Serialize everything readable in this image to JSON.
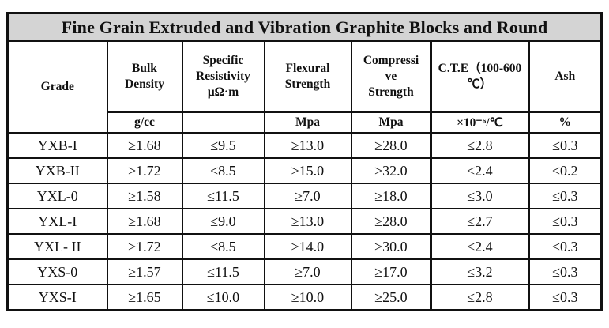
{
  "title": "Fine Grain Extruded and Vibration Graphite Blocks and Round",
  "headers": [
    "Grade",
    "Bulk Density",
    "Specific Resistivity μΩ·m",
    "Flexural Strength",
    "Compressive Strength",
    "C.T.E（100-600 ℃）",
    "Ash"
  ],
  "header_lines": [
    [
      "Grade"
    ],
    [
      "Bulk",
      "Density"
    ],
    [
      "Specific",
      "Resistivity",
      "μΩ·m"
    ],
    [
      "Flexural",
      "Strength"
    ],
    [
      "Compressi",
      "ve",
      "Strength"
    ],
    [
      "C.T.E（100-",
      "600 ℃）"
    ],
    [
      "Ash"
    ]
  ],
  "units": [
    "g/cc",
    "",
    "Mpa",
    "Mpa",
    "×10⁻⁶/℃",
    "%"
  ],
  "rows": [
    [
      "YXB-I",
      "≥1.68",
      "≤9.5",
      "≥13.0",
      "≥28.0",
      "≤2.8",
      "≤0.3"
    ],
    [
      "YXB-II",
      "≥1.72",
      "≤8.5",
      "≥15.0",
      "≥32.0",
      "≤2.4",
      "≤0.2"
    ],
    [
      "YXL-0",
      "≥1.58",
      "≤11.5",
      "≥7.0",
      "≥18.0",
      "≤3.0",
      "≤0.3"
    ],
    [
      "YXL-I",
      "≥1.68",
      "≤9.0",
      "≥13.0",
      "≥28.0",
      "≤2.7",
      "≤0.3"
    ],
    [
      "YXL- II",
      "≥1.72",
      "≤8.5",
      "≥14.0",
      "≥30.0",
      "≤2.4",
      "≤0.3"
    ],
    [
      "YXS-0",
      "≥1.57",
      "≤11.5",
      "≥7.0",
      "≥17.0",
      "≤3.2",
      "≤0.3"
    ],
    [
      "YXS-I",
      "≥1.65",
      "≤10.0",
      "≥10.0",
      "≥25.0",
      "≤2.8",
      "≤0.3"
    ]
  ]
}
